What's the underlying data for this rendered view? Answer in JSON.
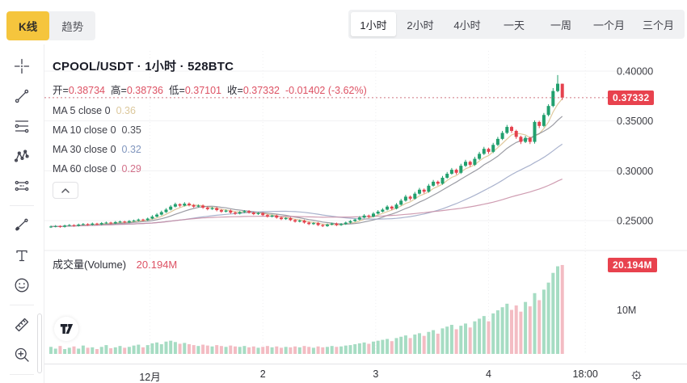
{
  "tabs": {
    "kline": "K线",
    "trend": "趋势"
  },
  "intervals": [
    {
      "label": "1小时",
      "selected": true
    },
    {
      "label": "2小时",
      "selected": false
    },
    {
      "label": "4小时",
      "selected": false
    },
    {
      "label": "一天",
      "selected": false
    },
    {
      "label": "一周",
      "selected": false
    },
    {
      "label": "一个月",
      "selected": false
    },
    {
      "label": "三个月",
      "selected": false
    }
  ],
  "toolbar": {
    "tools": [
      "crosshair",
      "trend-line",
      "fib-lines",
      "xabcd-pattern",
      "parallel-channel",
      "divider",
      "brush",
      "text",
      "emoji",
      "divider",
      "ruler",
      "zoom-in",
      "divider"
    ]
  },
  "chart": {
    "title": "CPOOL/USDT · 1小时 · 528BTC",
    "ohlc": {
      "parts": [
        {
          "label": "开=",
          "value": "0.38734"
        },
        {
          "label": "高=",
          "value": "0.38736"
        },
        {
          "label": "低=",
          "value": "0.37101"
        },
        {
          "label": "收=",
          "value": "0.37332"
        }
      ],
      "change": "-0.01402 (-3.62%)"
    },
    "ma_rows": [
      {
        "label": "MA 5 close 0",
        "value": "0.36",
        "color": "#dcc89c"
      },
      {
        "label": "MA 10 close 0",
        "value": "0.35",
        "color": "#4d4e56"
      },
      {
        "label": "MA 30 close 0",
        "value": "0.32",
        "color": "#8196be"
      },
      {
        "label": "MA 60 close 0",
        "value": "0.29",
        "color": "#d3718a"
      }
    ],
    "volume_label": "成交量(Volume)",
    "volume_value": "20.194M",
    "price_badge": "0.37332",
    "volume_badge": "20.194M"
  },
  "colors": {
    "up": "#22a06e",
    "down": "#e5424e",
    "vol_up": "#a6dcc3",
    "vol_down": "#f3bcc3",
    "badge": "#e8424e",
    "red_text": "#dd5264",
    "accent_tab": "#f5c53d",
    "last_price_line": "#cf7680"
  },
  "chart_data": {
    "type": "candlestick",
    "symbol": "CPOOL/USDT",
    "interval": "1小时",
    "amount": "528BTC",
    "last_price": 0.37332,
    "last_ohlc": {
      "open": 0.38734,
      "high": 0.38736,
      "low": 0.37101,
      "close": 0.37332,
      "change": -0.01402,
      "change_pct": -3.62
    },
    "ylim": [
      0.235,
      0.41
    ],
    "price_ticks": [
      {
        "label": "0.40000",
        "value": 0.4
      },
      {
        "label": "0.35000",
        "value": 0.35
      },
      {
        "label": "0.30000",
        "value": 0.3
      },
      {
        "label": "0.25000",
        "value": 0.25
      }
    ],
    "volume_unit": "M",
    "volume_ticks": [
      {
        "label": "10M",
        "value": 10
      }
    ],
    "time_ticks": [
      {
        "label": "12月",
        "i": 21.5
      },
      {
        "label": "2",
        "i": 46
      },
      {
        "label": "3",
        "i": 70.5
      },
      {
        "label": "4",
        "i": 95
      },
      {
        "label": "18:00",
        "i": 116
      }
    ],
    "ma_lines": [
      {
        "period": 5,
        "color": "#d9c08c"
      },
      {
        "period": 10,
        "color": "#8a8b94"
      },
      {
        "period": 30,
        "color": "#9aa4c4"
      },
      {
        "period": 60,
        "color": "#c78ba3"
      }
    ],
    "candles": [
      [
        0.2436,
        0.245,
        0.2426,
        0.244,
        1.6
      ],
      [
        0.244,
        0.2455,
        0.2432,
        0.2445,
        1.2
      ],
      [
        0.2445,
        0.2453,
        0.2428,
        0.2438,
        1.8
      ],
      [
        0.2438,
        0.246,
        0.243,
        0.245,
        1.1
      ],
      [
        0.245,
        0.2465,
        0.2442,
        0.2455,
        1.4
      ],
      [
        0.2455,
        0.2463,
        0.2438,
        0.2448,
        1.7
      ],
      [
        0.2448,
        0.247,
        0.244,
        0.246,
        1.2
      ],
      [
        0.246,
        0.2475,
        0.2452,
        0.2465,
        1.9
      ],
      [
        0.2465,
        0.2473,
        0.2448,
        0.2458,
        1.4
      ],
      [
        0.2458,
        0.248,
        0.245,
        0.247,
        1.5
      ],
      [
        0.247,
        0.2478,
        0.2452,
        0.2462,
        1.1
      ],
      [
        0.2462,
        0.2485,
        0.2454,
        0.2475,
        1.6
      ],
      [
        0.2475,
        0.249,
        0.2467,
        0.248,
        2.0
      ],
      [
        0.248,
        0.2488,
        0.2462,
        0.2472,
        1.3
      ],
      [
        0.2472,
        0.2495,
        0.2464,
        0.2485,
        1.5
      ],
      [
        0.2485,
        0.25,
        0.2477,
        0.249,
        1.8
      ],
      [
        0.249,
        0.2498,
        0.2472,
        0.2482,
        1.4
      ],
      [
        0.2482,
        0.2505,
        0.2474,
        0.2495,
        1.6
      ],
      [
        0.2495,
        0.251,
        0.2487,
        0.25,
        1.9
      ],
      [
        0.25,
        0.252,
        0.2492,
        0.251,
        2.1
      ],
      [
        0.251,
        0.2518,
        0.2495,
        0.2505,
        1.5
      ],
      [
        0.2505,
        0.253,
        0.2497,
        0.252,
        2.0
      ],
      [
        0.252,
        0.2555,
        0.2512,
        0.254,
        2.4
      ],
      [
        0.254,
        0.2575,
        0.2532,
        0.256,
        2.6
      ],
      [
        0.256,
        0.26,
        0.2552,
        0.2585,
        2.2
      ],
      [
        0.2585,
        0.2625,
        0.2577,
        0.261,
        2.8
      ],
      [
        0.261,
        0.2655,
        0.2602,
        0.264,
        3.0
      ],
      [
        0.264,
        0.268,
        0.2632,
        0.2665,
        2.7
      ],
      [
        0.2665,
        0.2673,
        0.2635,
        0.265,
        2.3
      ],
      [
        0.265,
        0.2685,
        0.2642,
        0.267,
        2.5
      ],
      [
        0.267,
        0.2682,
        0.2643,
        0.2655,
        2.2
      ],
      [
        0.2655,
        0.2667,
        0.2628,
        0.264,
        2.0
      ],
      [
        0.264,
        0.2662,
        0.2632,
        0.265,
        1.8
      ],
      [
        0.265,
        0.2662,
        0.2618,
        0.263,
        2.1
      ],
      [
        0.263,
        0.2642,
        0.2603,
        0.2615,
        1.9
      ],
      [
        0.2615,
        0.2637,
        0.2607,
        0.2625,
        1.7
      ],
      [
        0.2625,
        0.2637,
        0.2593,
        0.2605,
        2.0
      ],
      [
        0.2605,
        0.2617,
        0.2578,
        0.259,
        1.8
      ],
      [
        0.259,
        0.2612,
        0.2582,
        0.26,
        1.6
      ],
      [
        0.26,
        0.2612,
        0.2568,
        0.258,
        1.9
      ],
      [
        0.258,
        0.2592,
        0.2558,
        0.257,
        1.7
      ],
      [
        0.257,
        0.2595,
        0.2562,
        0.2585,
        1.6
      ],
      [
        0.2585,
        0.2605,
        0.2577,
        0.2595,
        1.8
      ],
      [
        0.2595,
        0.2605,
        0.257,
        0.258,
        1.5
      ],
      [
        0.258,
        0.259,
        0.2555,
        0.2565,
        1.7
      ],
      [
        0.2565,
        0.2585,
        0.2557,
        0.2575,
        1.4
      ],
      [
        0.2575,
        0.2585,
        0.2545,
        0.2555,
        1.6
      ],
      [
        0.2555,
        0.2565,
        0.253,
        0.254,
        1.8
      ],
      [
        0.254,
        0.256,
        0.2532,
        0.255,
        1.5
      ],
      [
        0.255,
        0.256,
        0.252,
        0.253,
        1.7
      ],
      [
        0.253,
        0.254,
        0.2505,
        0.2515,
        1.4
      ],
      [
        0.2515,
        0.2535,
        0.2507,
        0.2525,
        1.6
      ],
      [
        0.2525,
        0.2535,
        0.2495,
        0.2505,
        1.5
      ],
      [
        0.2505,
        0.2515,
        0.248,
        0.249,
        1.7
      ],
      [
        0.249,
        0.251,
        0.2482,
        0.25,
        1.5
      ],
      [
        0.25,
        0.251,
        0.247,
        0.248,
        1.8
      ],
      [
        0.248,
        0.249,
        0.2455,
        0.2465,
        1.6
      ],
      [
        0.2465,
        0.2485,
        0.2457,
        0.2475,
        1.4
      ],
      [
        0.2475,
        0.2485,
        0.2445,
        0.2455,
        1.7
      ],
      [
        0.2455,
        0.2465,
        0.2435,
        0.2445,
        1.5
      ],
      [
        0.2445,
        0.247,
        0.2437,
        0.246,
        1.6
      ],
      [
        0.246,
        0.248,
        0.2452,
        0.247,
        1.8
      ],
      [
        0.247,
        0.248,
        0.2445,
        0.2455,
        1.6
      ],
      [
        0.2455,
        0.2475,
        0.2447,
        0.2465,
        1.7
      ],
      [
        0.2465,
        0.249,
        0.2457,
        0.248,
        1.9
      ],
      [
        0.248,
        0.2505,
        0.2472,
        0.2495,
        2.0
      ],
      [
        0.2495,
        0.252,
        0.2487,
        0.251,
        2.2
      ],
      [
        0.251,
        0.2545,
        0.2502,
        0.253,
        2.4
      ],
      [
        0.253,
        0.2565,
        0.2522,
        0.255,
        2.6
      ],
      [
        0.255,
        0.256,
        0.2525,
        0.254,
        2.3
      ],
      [
        0.254,
        0.2585,
        0.2532,
        0.257,
        2.8
      ],
      [
        0.257,
        0.2605,
        0.2562,
        0.259,
        3.0
      ],
      [
        0.259,
        0.2625,
        0.2582,
        0.261,
        3.2
      ],
      [
        0.261,
        0.2655,
        0.2602,
        0.264,
        3.4
      ],
      [
        0.264,
        0.265,
        0.2605,
        0.262,
        2.9
      ],
      [
        0.262,
        0.2675,
        0.2612,
        0.266,
        3.6
      ],
      [
        0.266,
        0.2718,
        0.265,
        0.27,
        3.9
      ],
      [
        0.27,
        0.2758,
        0.269,
        0.274,
        4.2
      ],
      [
        0.274,
        0.2752,
        0.2702,
        0.272,
        3.6
      ],
      [
        0.272,
        0.2788,
        0.271,
        0.277,
        4.4
      ],
      [
        0.277,
        0.2828,
        0.276,
        0.281,
        4.7
      ],
      [
        0.281,
        0.2822,
        0.2772,
        0.279,
        4.1
      ],
      [
        0.279,
        0.2868,
        0.278,
        0.285,
        5.0
      ],
      [
        0.285,
        0.2908,
        0.284,
        0.289,
        5.4
      ],
      [
        0.289,
        0.2902,
        0.2852,
        0.287,
        4.6
      ],
      [
        0.287,
        0.2948,
        0.286,
        0.293,
        5.8
      ],
      [
        0.293,
        0.2988,
        0.292,
        0.297,
        6.2
      ],
      [
        0.297,
        0.3028,
        0.296,
        0.301,
        6.6
      ],
      [
        0.301,
        0.3022,
        0.2962,
        0.298,
        5.6
      ],
      [
        0.298,
        0.307,
        0.2968,
        0.305,
        6.4
      ],
      [
        0.305,
        0.311,
        0.3038,
        0.309,
        6.9
      ],
      [
        0.309,
        0.3102,
        0.304,
        0.306,
        6.0
      ],
      [
        0.306,
        0.314,
        0.3048,
        0.312,
        7.4
      ],
      [
        0.312,
        0.319,
        0.3108,
        0.317,
        8.0
      ],
      [
        0.317,
        0.324,
        0.3158,
        0.322,
        8.6
      ],
      [
        0.322,
        0.3232,
        0.317,
        0.319,
        7.4
      ],
      [
        0.319,
        0.328,
        0.3178,
        0.326,
        9.2
      ],
      [
        0.326,
        0.334,
        0.3248,
        0.332,
        9.9
      ],
      [
        0.332,
        0.34,
        0.3308,
        0.338,
        10.6
      ],
      [
        0.338,
        0.346,
        0.3368,
        0.344,
        11.4
      ],
      [
        0.344,
        0.3452,
        0.338,
        0.34,
        10.0
      ],
      [
        0.34,
        0.3412,
        0.332,
        0.334,
        11.0
      ],
      [
        0.334,
        0.3352,
        0.3268,
        0.329,
        9.6
      ],
      [
        0.329,
        0.335,
        0.3278,
        0.333,
        11.8
      ],
      [
        0.333,
        0.3342,
        0.3268,
        0.329,
        10.8
      ],
      [
        0.329,
        0.3505,
        0.3272,
        0.349,
        13.8
      ],
      [
        0.349,
        0.3502,
        0.3428,
        0.345,
        12.2
      ],
      [
        0.345,
        0.358,
        0.3438,
        0.356,
        14.6
      ],
      [
        0.356,
        0.3668,
        0.3546,
        0.365,
        16.2
      ],
      [
        0.365,
        0.383,
        0.3638,
        0.38,
        18.4
      ],
      [
        0.38,
        0.396,
        0.3788,
        0.38734,
        19.9
      ],
      [
        0.38734,
        0.38736,
        0.37101,
        0.37332,
        20.194
      ]
    ]
  }
}
